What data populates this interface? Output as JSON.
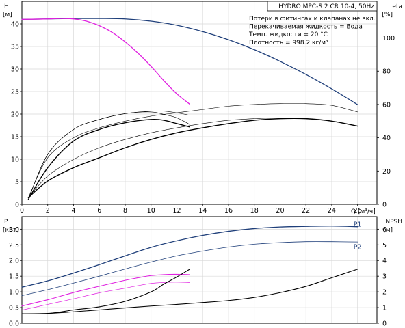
{
  "chart_data": [
    {
      "panel": "head",
      "type": "line",
      "title": "HYDRO MPC-S 2 CR 10-4, 50Hz",
      "notes": [
        "Потери в фитингах и клапанах не вкл.",
        "Перекачиваемая жидкость = Вода",
        "Темп. жидкости = 20 °C",
        "Плотность = 998.2 кг/м³"
      ],
      "ylabel": "H",
      "yunit": "[м]",
      "y2label": "eta",
      "y2unit": "[%]",
      "xunit": "Q [м³/ч]",
      "xlim": [
        0,
        27.5
      ],
      "ylim": [
        0,
        45
      ],
      "y2lim": [
        0,
        122
      ],
      "xticks": [
        0,
        2,
        4,
        6,
        8,
        10,
        12,
        14,
        16,
        18,
        20,
        22,
        24,
        26
      ],
      "yticks": [
        0,
        5,
        10,
        15,
        20,
        25,
        30,
        35,
        40
      ],
      "y2ticks": [
        0,
        20,
        40,
        60,
        80,
        100
      ],
      "grid": true,
      "series": [
        {
          "axis": "left",
          "color": "#1f3f7a",
          "width": 1.3,
          "x": [
            0,
            2,
            4,
            6,
            8,
            10,
            12,
            14,
            16,
            18,
            20,
            22,
            24,
            26
          ],
          "y": [
            41.0,
            41.1,
            41.2,
            41.2,
            41.1,
            40.6,
            39.7,
            38.3,
            36.5,
            34.3,
            31.7,
            28.8,
            25.6,
            22.1
          ]
        },
        {
          "axis": "left",
          "color": "#e020e0",
          "width": 1.3,
          "x": [
            0,
            2,
            3,
            4,
            5,
            6,
            7,
            8,
            9,
            10,
            11,
            12,
            13
          ],
          "y": [
            41.0,
            41.1,
            41.2,
            41.1,
            40.6,
            39.6,
            38.1,
            36.0,
            33.5,
            30.6,
            27.4,
            24.5,
            22.2
          ]
        },
        {
          "axis": "right",
          "color": "#000000",
          "width": 0.6,
          "x": [
            0.5,
            2,
            4,
            6,
            8,
            10,
            11,
            12,
            13
          ],
          "y": [
            3,
            30,
            45,
            51,
            54.5,
            56,
            56,
            55,
            53.5
          ]
        },
        {
          "axis": "right",
          "color": "#000000",
          "width": 1.4,
          "x": [
            0.5,
            2,
            4,
            6,
            8,
            10,
            11,
            12,
            13
          ],
          "y": [
            3,
            22,
            38,
            45,
            49,
            51,
            50.5,
            48.5,
            46.5
          ]
        },
        {
          "axis": "right",
          "color": "#000000",
          "width": 0.6,
          "x": [
            0.5,
            2,
            4,
            6,
            8,
            10,
            11,
            12,
            13
          ],
          "y": [
            3,
            30,
            45,
            51,
            54.5,
            55.5,
            54,
            52,
            48
          ]
        },
        {
          "axis": "right",
          "color": "#000000",
          "width": 0.6,
          "x": [
            0.5,
            2,
            4,
            6,
            8,
            10,
            12,
            14,
            16,
            18,
            20,
            22,
            24,
            26
          ],
          "y": [
            4,
            28,
            40,
            46,
            50,
            53,
            55,
            57,
            59,
            60,
            60.5,
            60.5,
            59.5,
            55.5
          ]
        },
        {
          "axis": "right",
          "color": "#000000",
          "width": 0.6,
          "x": [
            0.5,
            2,
            4,
            6,
            8,
            10,
            12,
            14,
            16,
            18,
            20,
            22,
            24,
            26
          ],
          "y": [
            4,
            17,
            27,
            34,
            39,
            43,
            46,
            48.5,
            50.5,
            51.5,
            52,
            51.5,
            50,
            47
          ]
        },
        {
          "axis": "right",
          "color": "#000000",
          "width": 1.4,
          "x": [
            0.5,
            2,
            4,
            6,
            8,
            10,
            12,
            14,
            16,
            18,
            20,
            22,
            24,
            26
          ],
          "y": [
            4,
            14,
            22,
            28,
            34,
            39,
            43,
            46,
            48.5,
            50.5,
            51.5,
            51.5,
            50,
            47
          ]
        }
      ]
    },
    {
      "panel": "power",
      "type": "line",
      "ylabel": "P",
      "yunit": "[кВт]",
      "y2label": "NPSH",
      "y2unit": "[м]",
      "xlim": [
        0,
        27.5
      ],
      "ylim": [
        0,
        3.4
      ],
      "y2lim": [
        0,
        6.8
      ],
      "yticks": [
        0.0,
        0.5,
        1.0,
        1.5,
        2.0,
        2.5,
        3.0
      ],
      "y2ticks": [
        0,
        1,
        2,
        3,
        4,
        5,
        6
      ],
      "grid": true,
      "labels": [
        {
          "text": "P1",
          "x": 26.0,
          "y": 3.15
        },
        {
          "text": "P2",
          "x": 26.0,
          "y": 2.43
        }
      ],
      "series": [
        {
          "axis": "left",
          "color": "#1f3f7a",
          "width": 1.3,
          "x": [
            0,
            2,
            4,
            6,
            8,
            10,
            12,
            14,
            16,
            18,
            20,
            22,
            24,
            26
          ],
          "y": [
            1.15,
            1.35,
            1.6,
            1.87,
            2.15,
            2.42,
            2.63,
            2.8,
            2.93,
            3.02,
            3.07,
            3.09,
            3.1,
            3.08
          ]
        },
        {
          "axis": "left",
          "color": "#1f3f7a",
          "width": 0.8,
          "x": [
            0,
            2,
            4,
            6,
            8,
            10,
            12,
            14,
            16,
            18,
            20,
            22,
            24,
            26
          ],
          "y": [
            0.88,
            1.07,
            1.28,
            1.5,
            1.73,
            1.95,
            2.15,
            2.3,
            2.43,
            2.52,
            2.57,
            2.6,
            2.6,
            2.59
          ]
        },
        {
          "axis": "left",
          "color": "#e020e0",
          "width": 1.1,
          "x": [
            0,
            2,
            4,
            6,
            8,
            9,
            10,
            11,
            12,
            13
          ],
          "y": [
            0.55,
            0.75,
            0.98,
            1.18,
            1.37,
            1.45,
            1.52,
            1.55,
            1.56,
            1.55
          ]
        },
        {
          "axis": "left",
          "color": "#e020e0",
          "width": 0.7,
          "x": [
            0,
            2,
            4,
            6,
            8,
            9,
            10,
            11,
            12,
            13
          ],
          "y": [
            0.42,
            0.6,
            0.78,
            0.97,
            1.12,
            1.2,
            1.27,
            1.3,
            1.31,
            1.3
          ]
        },
        {
          "axis": "right",
          "color": "#000000",
          "width": 1.1,
          "x": [
            0,
            2,
            4,
            6,
            8,
            10,
            11,
            12,
            13
          ],
          "y": [
            0.6,
            0.62,
            0.85,
            1.05,
            1.4,
            2.0,
            2.5,
            2.95,
            3.45
          ]
        },
        {
          "axis": "right",
          "color": "#000000",
          "width": 1.1,
          "x": [
            0,
            2,
            4,
            6,
            8,
            10,
            12,
            14,
            16,
            18,
            20,
            22,
            24,
            26
          ],
          "y": [
            0.6,
            0.63,
            0.73,
            0.85,
            0.98,
            1.1,
            1.2,
            1.32,
            1.45,
            1.65,
            1.95,
            2.35,
            2.9,
            3.45
          ]
        }
      ]
    }
  ]
}
